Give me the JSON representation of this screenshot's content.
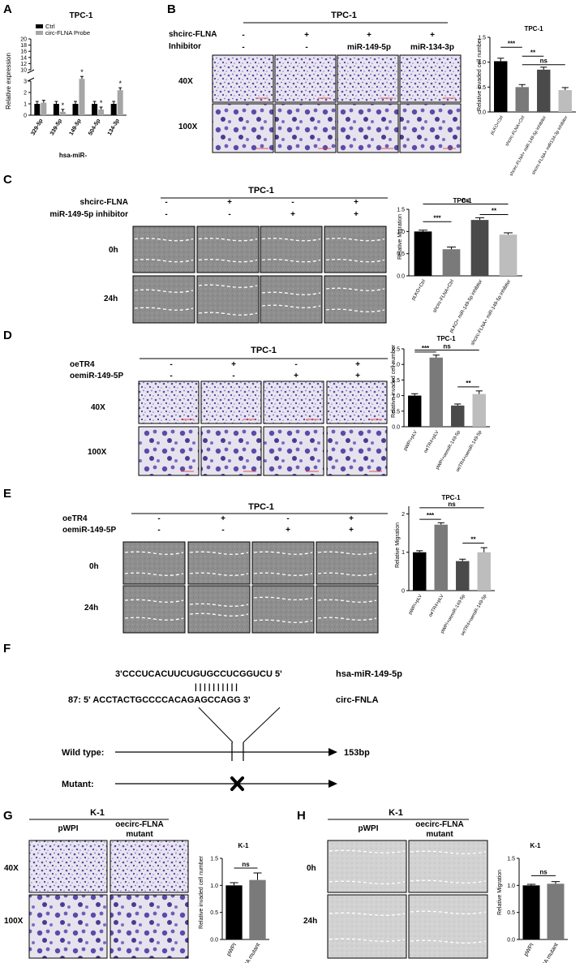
{
  "panel_letters": [
    "A",
    "B",
    "C",
    "D",
    "E",
    "F",
    "G",
    "H"
  ],
  "colors": {
    "black": "#000000",
    "dark_gray": "#4a4a4a",
    "mid_gray": "#7a7a7a",
    "light_gray": "#a6a6a6",
    "lighter_gray": "#bdbdbd",
    "stain": "#5b4aa8",
    "micro_bg": "#e9e7f0",
    "wound_bg": "#8c8c8c"
  },
  "A": {
    "title": "TPC-1",
    "legend": [
      "Ctrl",
      "circ-FLNA Probe"
    ],
    "ylabel": "Relative expression",
    "xgroup_label": "hsa-miR-",
    "categories": [
      "329-5p",
      "339-5p",
      "149-5p",
      "504-5p",
      "134-3p"
    ],
    "yticks_low": [
      "0",
      "1",
      "2",
      "3"
    ],
    "yticks_high": [
      "10",
      "12",
      "14",
      "16",
      "18",
      "20"
    ],
    "stars": [
      "*",
      "*",
      "*",
      "*"
    ]
  },
  "B": {
    "title": "TPC-1",
    "row_labels": [
      "shcirc-FLNA",
      "Inhibitor"
    ],
    "col_values": [
      [
        "-",
        "+",
        "+",
        "+"
      ],
      [
        "-",
        "-",
        "miR-149-5p",
        "miR-134-3p"
      ]
    ],
    "mag_labels": [
      "40X",
      "100X"
    ],
    "chart_title": "TPC-1",
    "ylabel": "Relative invaded cell number",
    "yticks": [
      "0.0",
      "0.5",
      "1.0",
      "1.5"
    ],
    "xlabels": [
      "pLKO+Ctrl",
      "shcirc-FLNA+Ctrl",
      "shcirc-FLNA+ miR-149-5p inhibitor",
      "shcirc-FLNA+ miR134-3p inhibitor"
    ],
    "sig": [
      "***",
      "**",
      "ns"
    ]
  },
  "C": {
    "title": "TPC-1",
    "row_labels": [
      "shcirc-FLNA",
      "miR-149-5p inhibitor"
    ],
    "col_values": [
      [
        "-",
        "+",
        "-",
        "+"
      ],
      [
        "-",
        "-",
        "+",
        "+"
      ]
    ],
    "time_labels": [
      "0h",
      "24h"
    ],
    "chart_title": "TPC-1",
    "ylabel": "Relative Migration",
    "yticks": [
      "0.0",
      "0.5",
      "1.0",
      "1.5"
    ],
    "xlabels": [
      "pLKO+Ctrl",
      "shcirc-FLNA+Ctrl",
      "pLKO+ miR-149-5p inhibitor",
      "shcirc-FLNA+ miR-149-5p inhibitor"
    ],
    "sig": [
      "ns",
      "***",
      "**"
    ]
  },
  "D": {
    "title": "TPC-1",
    "row_labels": [
      "oeTR4",
      "oemiR-149-5P"
    ],
    "col_values": [
      [
        "-",
        "+",
        "-",
        "+"
      ],
      [
        "-",
        "-",
        "+",
        "+"
      ]
    ],
    "mag_labels": [
      "40X",
      "100X"
    ],
    "chart_title": "TPC-1",
    "ylabel": "Relative invaded cell number",
    "yticks": [
      "0.0",
      "0.5",
      "1.0",
      "1.5",
      "2.0",
      "2.5"
    ],
    "xlabels": [
      "pWPI+pLV",
      "oeTR4+pLV",
      "pWPI+oemiR-149-5p",
      "oeTR4+oemiR-149-5p"
    ],
    "sig": [
      "ns",
      "***",
      "**"
    ]
  },
  "E": {
    "title": "TPC-1",
    "row_labels": [
      "oeTR4",
      "oemiR-149-5P"
    ],
    "col_values": [
      [
        "-",
        "+",
        "-",
        "+"
      ],
      [
        "-",
        "-",
        "+",
        "+"
      ]
    ],
    "time_labels": [
      "0h",
      "24h"
    ],
    "chart_title": "TPC-1",
    "ylabel": "Relative Migration",
    "yticks": [
      "0",
      "1",
      "2"
    ],
    "xlabels": [
      "pWPI+pLV",
      "oeTR4+pLV",
      "pWPI+oemiR-149-5p",
      "oeTR4+oemiR-149-5p"
    ],
    "sig": [
      "ns",
      "***",
      "**"
    ]
  },
  "F": {
    "mirna_seq": "3'CCCUCACUUCUGUGCCUCGGUCU 5'",
    "mirna_name": "hsa-miR-149-5p",
    "bond_marks": "| | | |   | | | | | |",
    "circ_seq": "87: 5' ACCTACTGCCCCACAGAGCCAGG 3'",
    "circ_name": "circ-FNLA",
    "wild_label": "Wild type:",
    "mutant_label": "Mutant:",
    "length": "153bp"
  },
  "G": {
    "title": "K-1",
    "col_labels": [
      "pWPI",
      "oecirc-FLNA mutant"
    ],
    "mag_labels": [
      "40X",
      "100X"
    ],
    "chart_title": "K-1",
    "ylabel": "Relative invaded cell number",
    "yticks": [
      "0.0",
      "0.5",
      "1.0",
      "1.5"
    ],
    "xlabels": [
      "pWPI",
      "oecirc-FLNA mutant"
    ],
    "sig": [
      "ns"
    ]
  },
  "H": {
    "title": "K-1",
    "col_labels": [
      "pWPI",
      "oecirc-FLNA mutant"
    ],
    "time_labels": [
      "0h",
      "24h"
    ],
    "chart_title": "K-1",
    "ylabel": "Relative Migration",
    "yticks": [
      "0.0",
      "0.5",
      "1.0",
      "1.5"
    ],
    "xlabels": [
      "pWPI",
      "oecirc-FLNA mutant"
    ],
    "sig": [
      "ns"
    ]
  },
  "chart_data": [
    {
      "panel": "A",
      "type": "bar",
      "categories": [
        "329-5p",
        "339-5p",
        "149-5p",
        "504-5p",
        "134-3p"
      ],
      "series": [
        {
          "name": "Ctrl",
          "values": [
            1,
            1,
            1,
            1,
            1
          ]
        },
        {
          "name": "circ-FLNA Probe",
          "values": [
            1.1,
            0.3,
            3.2,
            0.5,
            2.2
          ]
        }
      ],
      "ylabel": "Relative expression",
      "ybreak": [
        3,
        10
      ],
      "ylim": [
        0,
        20
      ]
    },
    {
      "panel": "B",
      "type": "bar",
      "categories": [
        "pLKO+Ctrl",
        "shcirc-FLNA+Ctrl",
        "shcirc-FLNA+ miR-149-5p inhibitor",
        "shcirc-FLNA+ miR134-3p inhibitor"
      ],
      "values": [
        1.02,
        0.5,
        0.85,
        0.44
      ],
      "errors": [
        0.06,
        0.05,
        0.05,
        0.05
      ],
      "ylim": [
        0,
        1.5
      ],
      "ylabel": "Relative invaded cell number"
    },
    {
      "panel": "C",
      "type": "bar",
      "categories": [
        "pLKO+Ctrl",
        "shcirc-FLNA+Ctrl",
        "pLKO+ miR-149-5p inhibitor",
        "shcirc-FLNA+ miR-149-5p inhibitor"
      ],
      "values": [
        1.0,
        0.6,
        1.26,
        0.93
      ],
      "errors": [
        0.03,
        0.05,
        0.05,
        0.04
      ],
      "ylim": [
        0,
        1.5
      ],
      "ylabel": "Relative Migration"
    },
    {
      "panel": "D",
      "type": "bar",
      "categories": [
        "pWPI+pLV",
        "oeTR4+pLV",
        "pWPI+oemiR-149-5p",
        "oeTR4+oemiR-149-5p"
      ],
      "values": [
        1.0,
        2.22,
        0.68,
        1.05
      ],
      "errors": [
        0.06,
        0.08,
        0.05,
        0.1
      ],
      "ylim": [
        0,
        2.5
      ],
      "ylabel": "Relative invaded cell number"
    },
    {
      "panel": "E",
      "type": "bar",
      "categories": [
        "pWPI+pLV",
        "oeTR4+pLV",
        "pWPI+oemiR-149-5p",
        "oeTR4+oemiR-149-5p"
      ],
      "values": [
        1.0,
        1.72,
        0.77,
        1.0
      ],
      "errors": [
        0.04,
        0.05,
        0.05,
        0.12
      ],
      "ylim": [
        0,
        2.2
      ],
      "ylabel": "Relative Migration"
    },
    {
      "panel": "G",
      "type": "bar",
      "categories": [
        "pWPI",
        "oecirc-FLNA mutant"
      ],
      "values": [
        1.0,
        1.1
      ],
      "errors": [
        0.05,
        0.13
      ],
      "ylim": [
        0,
        1.5
      ],
      "ylabel": "Relative invaded cell number"
    },
    {
      "panel": "H",
      "type": "bar",
      "categories": [
        "pWPI",
        "oecirc-FLNA mutant"
      ],
      "values": [
        1.0,
        1.03
      ],
      "errors": [
        0.02,
        0.04
      ],
      "ylim": [
        0,
        1.5
      ],
      "ylabel": "Relative Migration"
    }
  ]
}
